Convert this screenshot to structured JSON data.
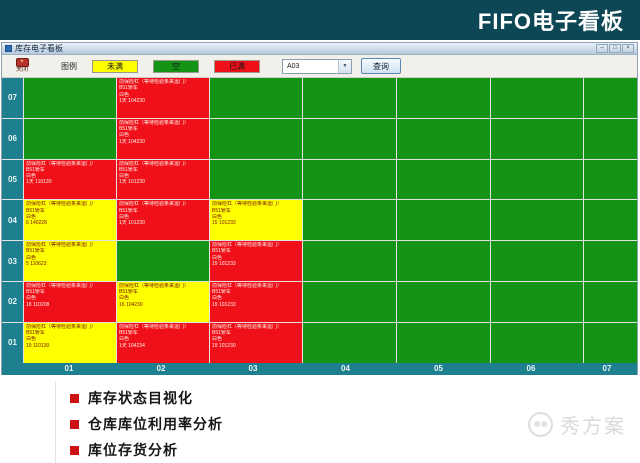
{
  "banner": {
    "title": "FIFO电子看板"
  },
  "window": {
    "title": "库存电子看板",
    "controls": {
      "minimize": "–",
      "maximize": "□",
      "close": "×"
    },
    "toolbar": {
      "close_button_label": "关闭",
      "legend_label": "图例",
      "legend": [
        {
          "label": "未满",
          "color": "#ffff00"
        },
        {
          "label": "空",
          "color": "#149414"
        },
        {
          "label": "已满",
          "color": "#ef1019"
        }
      ],
      "area_select_value": "A03",
      "query_button_label": "查询"
    },
    "grid": {
      "row_labels": [
        "07",
        "06",
        "05",
        "04",
        "03",
        "02",
        "01"
      ],
      "col_labels": [
        "01",
        "02",
        "03",
        "04",
        "05",
        "06",
        "07"
      ],
      "status_colors": {
        "empty": "#149414",
        "full": "#ef1019",
        "partial": "#ffff00"
      },
      "rows": [
        [
          {
            "status": "empty"
          },
          {
            "status": "full",
            "lines": [
              "前保险杠（等待检验条来运门）",
              "B51轿车",
              "白色",
              "1天  104230"
            ]
          },
          {
            "status": "empty"
          },
          {
            "status": "empty"
          },
          {
            "status": "empty"
          },
          {
            "status": "empty"
          },
          {
            "status": "empty"
          }
        ],
        [
          {
            "status": "empty"
          },
          {
            "status": "full",
            "lines": [
              "前保险杠（等待检验条来运门）",
              "B51轿车",
              "白色",
              "1天  104230"
            ]
          },
          {
            "status": "empty"
          },
          {
            "status": "empty"
          },
          {
            "status": "empty"
          },
          {
            "status": "empty"
          },
          {
            "status": "empty"
          }
        ],
        [
          {
            "status": "full",
            "lines": [
              "前保险杠（等待检验条来运门）",
              "B51轿车",
              "白色",
              "1天  110130"
            ]
          },
          {
            "status": "full",
            "lines": [
              "前保险杠（等待检验条来运门）",
              "B51轿车",
              "白色",
              "1天  101230"
            ]
          },
          {
            "status": "empty"
          },
          {
            "status": "empty"
          },
          {
            "status": "empty"
          },
          {
            "status": "empty"
          },
          {
            "status": "empty"
          }
        ],
        [
          {
            "status": "partial",
            "lines": [
              "前保险杠（等待检验条来运门）",
              "B51轿车",
              "白色",
              "6  140228"
            ]
          },
          {
            "status": "full",
            "lines": [
              "前保险杠（等待检验条来运门）",
              "B51轿车",
              "白色",
              "1天  101230"
            ]
          },
          {
            "status": "partial",
            "lines": [
              "前保险杠（等待检验条来运门）",
              "B51轿车",
              "白色",
              "15  101233"
            ]
          },
          {
            "status": "empty"
          },
          {
            "status": "empty"
          },
          {
            "status": "empty"
          },
          {
            "status": "empty"
          }
        ],
        [
          {
            "status": "partial",
            "lines": [
              "前保险杠（等待检验条来运门）",
              "B51轿车",
              "白色",
              "5  110623"
            ]
          },
          {
            "status": "empty"
          },
          {
            "status": "full",
            "lines": [
              "前保险杠（等待检验条来运门）",
              "B51轿车",
              "白色",
              "19  101233"
            ]
          },
          {
            "status": "empty"
          },
          {
            "status": "empty"
          },
          {
            "status": "empty"
          },
          {
            "status": "empty"
          }
        ],
        [
          {
            "status": "full",
            "lines": [
              "前保险杠（等待检验条来运门）",
              "B51轿车",
              "白色",
              "18  110208"
            ]
          },
          {
            "status": "partial",
            "lines": [
              "前保险杠（等待检验条来运门）",
              "B51轿车",
              "白色",
              "16  104230"
            ]
          },
          {
            "status": "full",
            "lines": [
              "前保险杠（等待检验条来运门）",
              "B51轿车",
              "白色",
              "19  101233"
            ]
          },
          {
            "status": "empty"
          },
          {
            "status": "empty"
          },
          {
            "status": "empty"
          },
          {
            "status": "empty"
          }
        ],
        [
          {
            "status": "partial",
            "lines": [
              "前保险杠（等待检验条来运门）",
              "B51轿车",
              "白色",
              "19  110130"
            ]
          },
          {
            "status": "full",
            "lines": [
              "前保险杠（等待检验条来运门）",
              "B51轿车",
              "白色",
              "1天  104234"
            ]
          },
          {
            "status": "full",
            "lines": [
              "前保险杠（等待检验条来运门）",
              "B51轿车",
              "白色",
              "19  101230"
            ]
          },
          {
            "status": "empty"
          },
          {
            "status": "empty"
          },
          {
            "status": "empty"
          },
          {
            "status": "empty"
          }
        ]
      ]
    }
  },
  "footer": {
    "bullets": [
      "库存状态目视化",
      "仓库库位利用率分析",
      "库位存货分析"
    ],
    "watermark": "秀方案"
  }
}
